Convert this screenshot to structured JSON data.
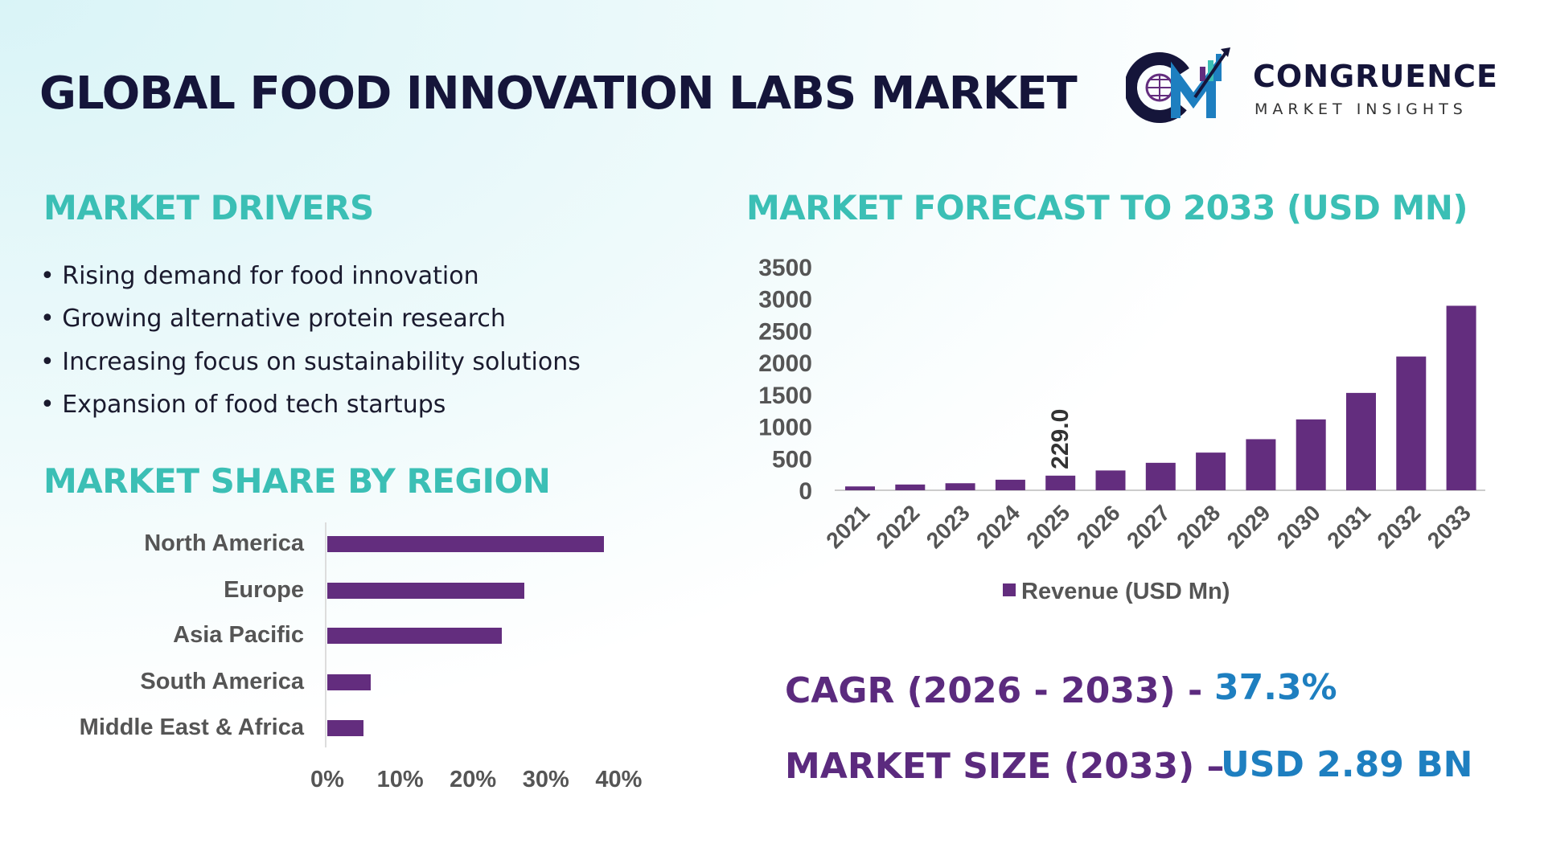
{
  "header": {
    "title": "GLOBAL FOOD INNOVATION LABS MARKET",
    "logo": {
      "name": "CONGRUENCE",
      "tagline": "MARKET INSIGHTS",
      "mark": "CM"
    }
  },
  "drivers": {
    "heading": "MARKET DRIVERS",
    "items": [
      "• Rising demand for food innovation",
      "• Growing alternative protein research",
      "• Increasing focus on sustainability solutions",
      "• Expansion of food tech startups"
    ]
  },
  "colors": {
    "teal": "#3bbfb5",
    "purple": "#5b2a7e",
    "bar": "#632d7e",
    "blue": "#1e7fc0",
    "navy": "#15153a"
  },
  "chart_data": [
    {
      "type": "bar",
      "orientation": "horizontal",
      "title": "MARKET SHARE BY REGION",
      "categories": [
        "North America",
        "Europe",
        "Asia Pacific",
        "South America",
        "Middle East & Africa"
      ],
      "values": [
        38,
        27,
        24,
        6,
        5
      ],
      "unit": "%",
      "xlim": [
        0,
        40
      ],
      "xticks": [
        "0%",
        "10%",
        "20%",
        "30%",
        "40%"
      ],
      "grid": false
    },
    {
      "type": "bar",
      "title": "MARKET FORECAST TO 2033 (USD MN)",
      "categories": [
        "2021",
        "2022",
        "2023",
        "2024",
        "2025",
        "2026",
        "2027",
        "2028",
        "2029",
        "2030",
        "2031",
        "2032",
        "2033"
      ],
      "series": [
        {
          "name": "Revenue (USD Mn)",
          "values": [
            60,
            90,
            110,
            165,
            229,
            310,
            430,
            590,
            800,
            1110,
            1525,
            2095,
            2890
          ]
        }
      ],
      "ylim": [
        0,
        3500
      ],
      "yticks": [
        "0",
        "500",
        "1000",
        "1500",
        "2000",
        "2500",
        "3000",
        "3500"
      ],
      "data_labels": {
        "2025": "229.0"
      },
      "legend": "bottom",
      "grid": false
    }
  ],
  "stats": {
    "cagr_label": "CAGR (2026 - 2033) -",
    "cagr_value": "37.3%",
    "size_label": "MARKET SIZE (2033) –",
    "size_value": "USD 2.89 BN"
  }
}
